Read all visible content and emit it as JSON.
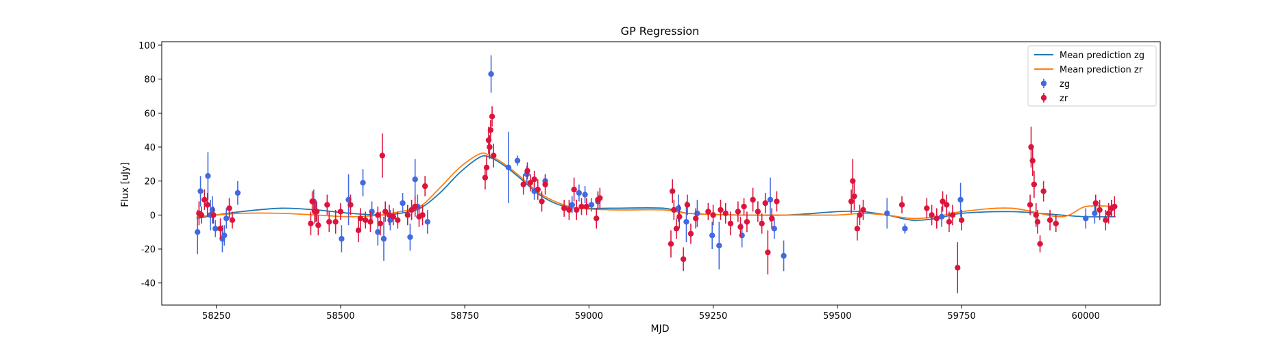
{
  "chart_data": {
    "type": "scatter",
    "title": "GP Regression",
    "xlabel": "MJD",
    "ylabel": "Flux [uJy]",
    "xlim": [
      58140,
      60150
    ],
    "ylim": [
      -53,
      102
    ],
    "xticks": [
      58250,
      58500,
      58750,
      59000,
      59250,
      59500,
      59750,
      60000
    ],
    "yticks": [
      -40,
      -20,
      0,
      20,
      40,
      60,
      80,
      100
    ],
    "grid": false,
    "legend_position": "top-right",
    "colors": {
      "zg_line": "#1f77b4",
      "zr_line": "#ff7f0e",
      "zg_points": "#4169e1",
      "zr_points": "#dc143c"
    },
    "legend": [
      {
        "label": "Mean prediction zg",
        "kind": "line",
        "color": "#1f77b4"
      },
      {
        "label": "Mean prediction zr",
        "kind": "line",
        "color": "#ff7f0e"
      },
      {
        "label": "zg",
        "kind": "point",
        "color": "#4169e1"
      },
      {
        "label": "zr",
        "kind": "point",
        "color": "#dc143c"
      }
    ],
    "series": [
      {
        "name": "Mean prediction zg",
        "kind": "line",
        "x": [
          58210,
          58250,
          58300,
          58380,
          58450,
          58520,
          58580,
          58620,
          58660,
          58700,
          58740,
          58780,
          58800,
          58830,
          58860,
          58900,
          58940,
          58980,
          59050,
          59150,
          59200,
          59300,
          59400,
          59500,
          59550,
          59600,
          59650,
          59700,
          59750,
          59850,
          59950,
          60000,
          60060
        ],
        "y": [
          -2,
          0,
          2,
          4,
          3,
          1,
          0,
          1,
          4,
          13,
          25,
          34,
          34,
          29,
          22,
          12,
          6,
          4,
          4,
          4,
          1,
          0,
          0,
          2,
          2,
          0,
          -3,
          -2,
          1,
          2,
          0,
          -1,
          -1
        ]
      },
      {
        "name": "Mean prediction zr",
        "kind": "line",
        "x": [
          58210,
          58250,
          58300,
          58380,
          58450,
          58520,
          58580,
          58620,
          58660,
          58700,
          58740,
          58780,
          58800,
          58830,
          58860,
          58900,
          58940,
          58980,
          59050,
          59150,
          59200,
          59300,
          59400,
          59500,
          59550,
          59600,
          59650,
          59700,
          59750,
          59850,
          59950,
          60000,
          60060
        ],
        "y": [
          -1,
          0,
          1,
          1,
          0,
          -1,
          0,
          2,
          5,
          16,
          28,
          36,
          35,
          30,
          23,
          13,
          7,
          4,
          3,
          3,
          1,
          0,
          0,
          0,
          1,
          0,
          -2,
          -1,
          2,
          4,
          -1,
          5,
          5
        ]
      },
      {
        "name": "zg",
        "kind": "errorbar",
        "x": [
          58212,
          58218,
          58233,
          58238,
          58242,
          58248,
          58262,
          58266,
          58270,
          58293,
          58446,
          58450,
          58502,
          58516,
          58545,
          58563,
          58575,
          58587,
          58600,
          58625,
          58640,
          58650,
          58655,
          58675,
          58803,
          58838,
          58856,
          58875,
          58890,
          58912,
          58966,
          58980,
          58992,
          59005,
          59018,
          59180,
          59196,
          59218,
          59248,
          59262,
          59308,
          59365,
          59373,
          59392,
          59600,
          59636,
          59710,
          59748,
          60000,
          60018,
          60052
        ],
        "y": [
          -10,
          14,
          23,
          0,
          3,
          -8,
          -14,
          -12,
          -2,
          13,
          8,
          2,
          -14,
          9,
          19,
          2,
          -10,
          -14,
          -3,
          7,
          -13,
          21,
          5,
          -4,
          83,
          28,
          32,
          24,
          14,
          20,
          6,
          13,
          12,
          6,
          8,
          4,
          -4,
          1,
          -12,
          -18,
          -12,
          9,
          -8,
          -24,
          1,
          -8,
          -1,
          9,
          -2,
          1,
          4
        ],
        "yerr": [
          13,
          9,
          14,
          9,
          8,
          5,
          8,
          6,
          6,
          7,
          7,
          6,
          8,
          15,
          8,
          6,
          8,
          13,
          6,
          6,
          8,
          12,
          7,
          7,
          11,
          21,
          3,
          5,
          5,
          4,
          5,
          5,
          5,
          4,
          5,
          8,
          12,
          8,
          8,
          14,
          7,
          13,
          6,
          9,
          9,
          3,
          6,
          10,
          6,
          6,
          5
        ]
      },
      {
        "name": "zr",
        "kind": "errorbar",
        "x": [
          58215,
          58220,
          58226,
          58232,
          58244,
          58258,
          58276,
          58282,
          58440,
          58443,
          58448,
          58452,
          58455,
          58473,
          58477,
          58490,
          58500,
          58520,
          58536,
          58540,
          58550,
          58560,
          58575,
          58580,
          58584,
          58590,
          58598,
          58606,
          58615,
          58635,
          58643,
          58650,
          58658,
          58665,
          58670,
          58791,
          58794,
          58798,
          58800,
          58802,
          58805,
          58808,
          58868,
          58876,
          58882,
          58890,
          58897,
          58905,
          58912,
          58950,
          58960,
          58970,
          58975,
          58985,
          58995,
          59015,
          59018,
          59022,
          59165,
          59168,
          59171,
          59176,
          59182,
          59190,
          59198,
          59205,
          59215,
          59240,
          59250,
          59265,
          59275,
          59285,
          59300,
          59305,
          59312,
          59318,
          59330,
          59340,
          59348,
          59355,
          59360,
          59368,
          59378,
          59528,
          59531,
          59534,
          59540,
          59545,
          59552,
          59630,
          59680,
          59690,
          59700,
          59712,
          59720,
          59725,
          59732,
          59742,
          59750,
          59888,
          59890,
          59893,
          59896,
          59900,
          59903,
          59908,
          59915,
          59928,
          59940,
          60020,
          60028,
          60040,
          60046,
          60052,
          60058
        ],
        "y": [
          1,
          0,
          9,
          6,
          0,
          -8,
          4,
          -3,
          -5,
          8,
          2,
          2,
          -6,
          6,
          -4,
          -4,
          2,
          6,
          -9,
          -2,
          -3,
          -4,
          0,
          -5,
          35,
          2,
          0,
          -1,
          -3,
          0,
          3,
          5,
          -1,
          0,
          17,
          22,
          28,
          44,
          40,
          50,
          58,
          35,
          18,
          26,
          19,
          21,
          15,
          8,
          18,
          4,
          3,
          15,
          3,
          5,
          5,
          -2,
          9,
          10,
          -17,
          14,
          3,
          -8,
          -1,
          -26,
          6,
          -11,
          -2,
          2,
          0,
          3,
          1,
          -5,
          2,
          -7,
          5,
          -4,
          9,
          2,
          -5,
          7,
          -22,
          -2,
          8,
          8,
          20,
          11,
          -8,
          0,
          3,
          6,
          4,
          0,
          -2,
          8,
          6,
          -4,
          0,
          -31,
          -3,
          6,
          40,
          32,
          18,
          0,
          -4,
          -17,
          14,
          -3,
          -5,
          7,
          3,
          -3,
          1,
          4,
          5
        ],
        "yerr": [
          7,
          5,
          6,
          7,
          5,
          6,
          6,
          5,
          7,
          6,
          7,
          6,
          6,
          6,
          6,
          7,
          5,
          6,
          7,
          6,
          5,
          6,
          5,
          7,
          13,
          6,
          6,
          5,
          5,
          6,
          6,
          6,
          6,
          6,
          6,
          7,
          7,
          8,
          7,
          6,
          6,
          7,
          6,
          5,
          5,
          5,
          6,
          6,
          6,
          5,
          6,
          7,
          6,
          5,
          5,
          6,
          5,
          6,
          8,
          7,
          6,
          6,
          7,
          7,
          6,
          6,
          6,
          5,
          6,
          6,
          6,
          7,
          6,
          6,
          5,
          6,
          7,
          6,
          6,
          6,
          13,
          6,
          6,
          7,
          13,
          8,
          7,
          6,
          6,
          5,
          6,
          6,
          6,
          6,
          6,
          6,
          6,
          15,
          6,
          6,
          12,
          9,
          8,
          7,
          7,
          5,
          6,
          6,
          5,
          5,
          6,
          6,
          6,
          5,
          6
        ]
      }
    ]
  }
}
